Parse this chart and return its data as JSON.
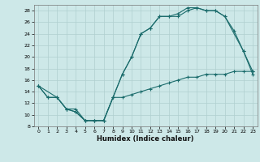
{
  "xlabel": "Humidex (Indice chaleur)",
  "xlim": [
    -0.5,
    23.5
  ],
  "ylim": [
    8,
    29
  ],
  "yticks": [
    8,
    10,
    12,
    14,
    16,
    18,
    20,
    22,
    24,
    26,
    28
  ],
  "xticks": [
    0,
    1,
    2,
    3,
    4,
    5,
    6,
    7,
    8,
    9,
    10,
    11,
    12,
    13,
    14,
    15,
    16,
    17,
    18,
    19,
    20,
    21,
    22,
    23
  ],
  "bg_color": "#cde8e8",
  "grid_color": "#b0cfcf",
  "line_color": "#1a6b6b",
  "line1_x": [
    0,
    1,
    2,
    3,
    4,
    5,
    6,
    7,
    8,
    9,
    10,
    11,
    12,
    13,
    14,
    15,
    16,
    17,
    18,
    19,
    20,
    21,
    22,
    23
  ],
  "line1_y": [
    15,
    13,
    13,
    11,
    11,
    9,
    9,
    9,
    13,
    17,
    20,
    24,
    25,
    27,
    27,
    27.5,
    28.5,
    28.5,
    28,
    28,
    27,
    24.5,
    21,
    17.5
  ],
  "line2_x": [
    0,
    2,
    3,
    4,
    5,
    6,
    7,
    8,
    9,
    10,
    11,
    12,
    13,
    14,
    15,
    16,
    17,
    18,
    19,
    20,
    22,
    23
  ],
  "line2_y": [
    15,
    13,
    11,
    10.5,
    9,
    9,
    9,
    13,
    17,
    20,
    24,
    25,
    27,
    27,
    27,
    28,
    28.5,
    28,
    28,
    27,
    21,
    17
  ],
  "line3_x": [
    0,
    1,
    2,
    3,
    4,
    5,
    6,
    7,
    8,
    9,
    10,
    11,
    12,
    13,
    14,
    15,
    16,
    17,
    18,
    19,
    20,
    21,
    22,
    23
  ],
  "line3_y": [
    15,
    13,
    13,
    11,
    10.5,
    9,
    9,
    9,
    13,
    13,
    13.5,
    14,
    14.5,
    15,
    15.5,
    16,
    16.5,
    16.5,
    17,
    17,
    17,
    17.5,
    17.5,
    17.5
  ]
}
